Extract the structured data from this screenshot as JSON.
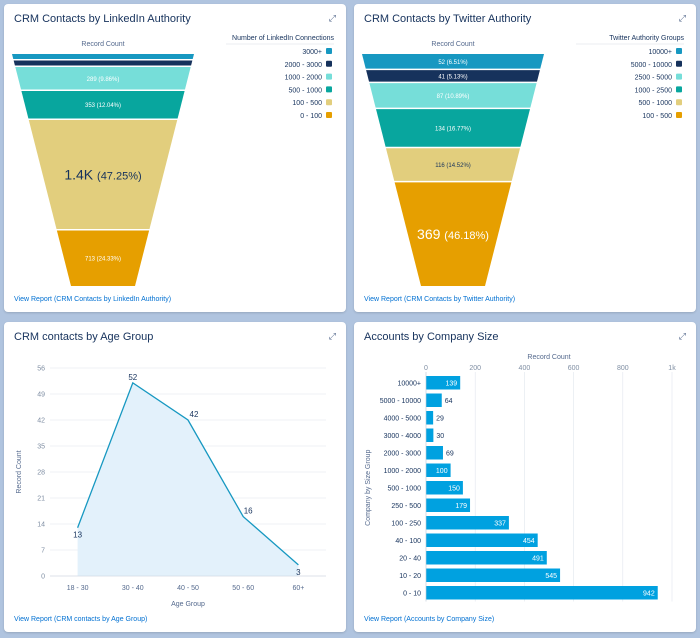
{
  "expand_icon_glyph": "⤢",
  "cards": {
    "linkedin": {
      "title": "CRM Contacts by LinkedIn Authority",
      "link": "View Report (CRM Contacts by LinkedIn Authority)"
    },
    "twitter": {
      "title": "CRM Contacts by Twitter Authority",
      "link": "View Report (CRM Contacts by Twitter Authority)"
    },
    "age": {
      "title": "CRM contacts by Age Group",
      "link": "View Report (CRM contacts by Age Group)"
    },
    "company": {
      "title": "Accounts by Company Size",
      "link": "View Report (Accounts by Company Size)"
    }
  },
  "chart_data": [
    {
      "type": "funnel",
      "title": "CRM Contacts by LinkedIn Authority",
      "xlabel": "Record Count",
      "legend_title": "Number of LinkedIn Connections",
      "legend_position": "right",
      "categories": [
        "3000+",
        "2000 - 3000",
        "1000 - 2000",
        "500 - 1000",
        "100 - 500",
        "0 - 100"
      ],
      "values": [
        18,
        17,
        289,
        353,
        1400,
        713
      ],
      "labels": [
        "",
        "",
        "289 (9.86%)",
        "353 (12.04%)",
        "1.4K (47.25%)",
        "713 (24.33%)"
      ],
      "colors": [
        "#1798c1",
        "#16325c",
        "#76ded9",
        "#08a69e",
        "#e2ce7d",
        "#e69f00"
      ]
    },
    {
      "type": "funnel",
      "title": "CRM Contacts by Twitter Authority",
      "xlabel": "Record Count",
      "legend_title": "Twitter Authority Groups",
      "legend_position": "right",
      "categories": [
        "10000+",
        "5000 - 10000",
        "2500 - 5000",
        "1000 - 2500",
        "500 - 1000",
        "100 - 500"
      ],
      "values": [
        52,
        41,
        87,
        134,
        116,
        369
      ],
      "labels": [
        "52 (6.51%)",
        "41 (5.13%)",
        "87 (10.89%)",
        "134 (16.77%)",
        "116 (14.52%)",
        "369 (46.18%)"
      ],
      "colors": [
        "#1798c1",
        "#16325c",
        "#76ded9",
        "#08a69e",
        "#e2ce7d",
        "#e69f00"
      ]
    },
    {
      "type": "area",
      "title": "CRM contacts by Age Group",
      "xlabel": "Age Group",
      "ylabel": "Record Count",
      "categories": [
        "18 - 30",
        "30 - 40",
        "40 - 50",
        "50 - 60",
        "60+"
      ],
      "values": [
        13,
        52,
        42,
        16,
        3
      ],
      "labels": [
        "13",
        "52",
        "42",
        "16",
        "3"
      ],
      "ylim": [
        0,
        56
      ],
      "yticks": [
        "0",
        "7",
        "14",
        "21",
        "28",
        "35",
        "42",
        "49",
        "56"
      ],
      "grid": true
    },
    {
      "type": "bar",
      "orientation": "horizontal",
      "title": "Accounts by Company Size",
      "xlabel": "Record Count",
      "ylabel": "Company by Size Group",
      "categories": [
        "10000+",
        "5000 - 10000",
        "4000 - 5000",
        "3000 - 4000",
        "2000 - 3000",
        "1000 - 2000",
        "500 - 1000",
        "250 - 500",
        "100 - 250",
        "40 - 100",
        "20 - 40",
        "10 - 20",
        "0 - 10"
      ],
      "values": [
        139,
        64,
        29,
        30,
        69,
        100,
        150,
        179,
        337,
        454,
        491,
        545,
        942
      ],
      "labels": [
        "139",
        "64",
        "29",
        "30",
        "69",
        "100",
        "150",
        "179",
        "337",
        "454",
        "491",
        "545",
        "942"
      ],
      "xlim": [
        0,
        1000
      ],
      "xticks": [
        "0",
        "200",
        "400",
        "600",
        "800",
        "1k"
      ],
      "grid": true,
      "color": "#00a1e0"
    }
  ]
}
